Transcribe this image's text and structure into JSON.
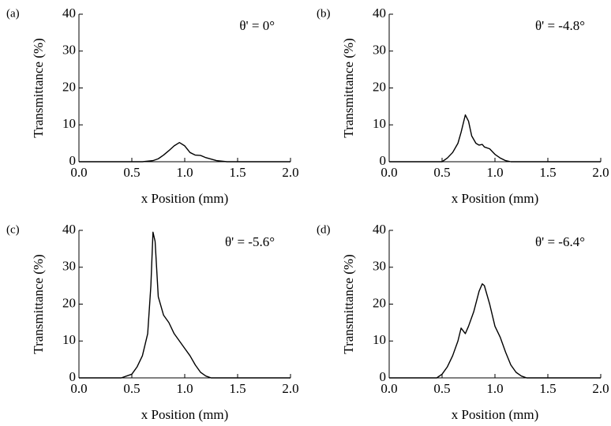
{
  "chart_data": [
    {
      "type": "line",
      "label": "(a)",
      "annotation": "θ' = 0°",
      "xlabel": "x Position (mm)",
      "ylabel": "Transmittance (%)",
      "xlim": [
        0,
        2
      ],
      "ylim": [
        0,
        40
      ],
      "xticks": [
        {
          "value": 0,
          "label": "0.0"
        },
        0.5,
        {
          "value": 1,
          "label": "1.0"
        },
        1.5,
        {
          "value": 2,
          "label": "2.0"
        }
      ],
      "yticks": [
        0,
        10,
        20,
        30,
        40
      ],
      "series": [
        {
          "color": "#000000",
          "x": [
            0,
            0.6,
            0.7,
            0.75,
            0.8,
            0.85,
            0.9,
            0.95,
            1.0,
            1.05,
            1.1,
            1.15,
            1.2,
            1.25,
            1.3,
            1.4,
            2
          ],
          "values": [
            0,
            0,
            0.3,
            0.8,
            1.8,
            3,
            4.3,
            5.2,
            4.3,
            2.5,
            1.8,
            1.7,
            1.1,
            0.7,
            0.3,
            0,
            0
          ]
        }
      ]
    },
    {
      "type": "line",
      "label": "(b)",
      "annotation": "θ' = -4.8°",
      "xlabel": "x Position (mm)",
      "ylabel": "Transmittance (%)",
      "xlim": [
        0,
        2
      ],
      "ylim": [
        0,
        40
      ],
      "xticks": [
        {
          "value": 0,
          "label": "0.0"
        },
        0.5,
        {
          "value": 1,
          "label": "1.0"
        },
        1.5,
        {
          "value": 2,
          "label": "2.0"
        }
      ],
      "yticks": [
        0,
        10,
        20,
        30,
        40
      ],
      "series": [
        {
          "color": "#000000",
          "x": [
            0,
            0.5,
            0.55,
            0.6,
            0.65,
            0.68,
            0.72,
            0.75,
            0.78,
            0.82,
            0.85,
            0.88,
            0.9,
            0.95,
            1.0,
            1.05,
            1.1,
            1.15,
            2
          ],
          "values": [
            0,
            0,
            1,
            2.5,
            5,
            8,
            12.7,
            11,
            7,
            5,
            4.5,
            4.7,
            4,
            3.5,
            2,
            1,
            0.3,
            0,
            0
          ]
        }
      ]
    },
    {
      "type": "line",
      "label": "(c)",
      "annotation": "θ' = -5.6°",
      "xlabel": "x Position (mm)",
      "ylabel": "Transmittance (%)",
      "xlim": [
        0,
        2
      ],
      "ylim": [
        0,
        40
      ],
      "xticks": [
        {
          "value": 0,
          "label": "0.0"
        },
        0.5,
        {
          "value": 1,
          "label": "1.0"
        },
        1.5,
        {
          "value": 2,
          "label": "2.0"
        }
      ],
      "yticks": [
        0,
        10,
        20,
        30,
        40
      ],
      "series": [
        {
          "color": "#000000",
          "x": [
            0,
            0.4,
            0.5,
            0.55,
            0.6,
            0.65,
            0.68,
            0.7,
            0.72,
            0.75,
            0.8,
            0.85,
            0.9,
            0.95,
            1.0,
            1.05,
            1.1,
            1.15,
            1.2,
            1.25,
            2
          ],
          "values": [
            0,
            0,
            1,
            3,
            6,
            12,
            25,
            39.5,
            37,
            22,
            17,
            15,
            12,
            10,
            8,
            6,
            3.5,
            1.5,
            0.5,
            0,
            0
          ]
        }
      ]
    },
    {
      "type": "line",
      "label": "(d)",
      "annotation": "θ' = -6.4°",
      "xlabel": "x Position (mm)",
      "ylabel": "Transmittance (%)",
      "xlim": [
        0,
        2
      ],
      "ylim": [
        0,
        40
      ],
      "xticks": [
        {
          "value": 0,
          "label": "0.0"
        },
        0.5,
        {
          "value": 1,
          "label": "1.0"
        },
        1.5,
        {
          "value": 2,
          "label": "2.0"
        }
      ],
      "yticks": [
        0,
        10,
        20,
        30,
        40
      ],
      "series": [
        {
          "color": "#000000",
          "x": [
            0,
            0.45,
            0.5,
            0.55,
            0.6,
            0.65,
            0.68,
            0.72,
            0.75,
            0.8,
            0.85,
            0.88,
            0.9,
            0.95,
            1.0,
            1.05,
            1.1,
            1.15,
            1.2,
            1.25,
            1.3,
            2
          ],
          "values": [
            0,
            0,
            1,
            3,
            6,
            10,
            13.5,
            12,
            14,
            18,
            23.5,
            25.5,
            25,
            20,
            14,
            11,
            7,
            3.5,
            1.5,
            0.5,
            0,
            0
          ]
        }
      ]
    }
  ]
}
